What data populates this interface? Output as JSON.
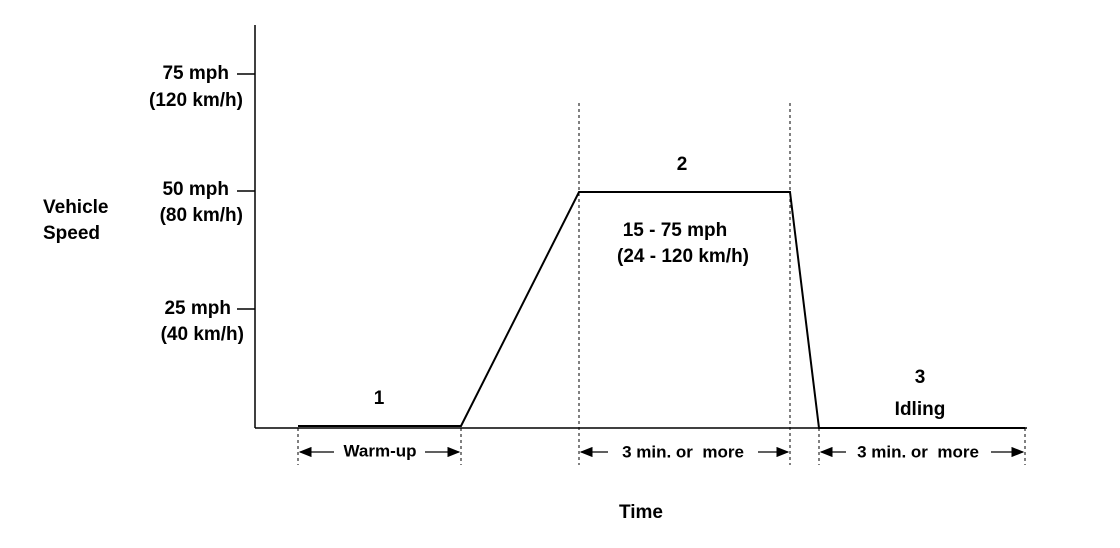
{
  "y_axis": {
    "title": [
      "Vehicle",
      "Speed"
    ],
    "ticks": [
      {
        "speed": "75 mph",
        "metric": "(120 km/h)"
      },
      {
        "speed": "50 mph",
        "metric": "(80 km/h)"
      },
      {
        "speed": "25 mph",
        "metric": "(40 km/h)"
      }
    ]
  },
  "x_axis": {
    "title": "Time"
  },
  "phases": [
    {
      "number": "1",
      "duration": "Warm-up"
    },
    {
      "number": "2",
      "range": [
        "15 - 75 mph",
        "(24 - 120 km/h)"
      ],
      "duration": "3 min. or  more"
    },
    {
      "number": "3",
      "label": "Idling",
      "duration": "3 min. or  more"
    }
  ]
}
